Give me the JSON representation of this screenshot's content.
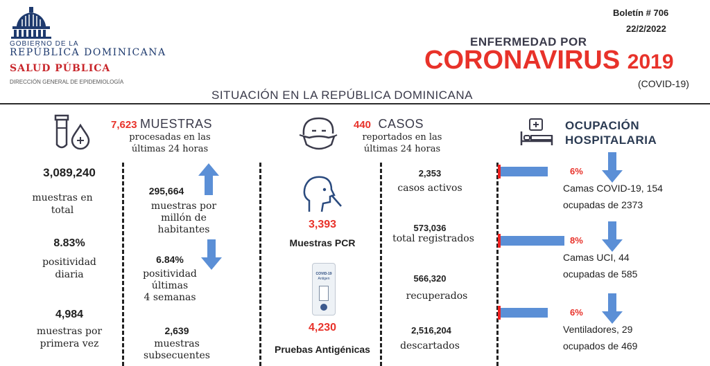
{
  "header": {
    "gov_line1": "GOBIERNO DE LA",
    "gov_line2": "REPÚBLICA DOMINICANA",
    "ministry": "SALUD PÚBLICA",
    "direction": "DIRECCIÓN GENERAL DE EPIDEMIOLOGÍA",
    "bulletin": "Boletín # 706",
    "date": "22/2/2022",
    "title_small": "ENFERMEDAD POR",
    "title_big": "CORONAVIRUS",
    "title_year": "2019",
    "title_paren": "(COVID-19)",
    "subtitle": "SITUACIÓN EN LA REPÚBLICA DOMINICANA"
  },
  "muestras": {
    "count_24h": "7,623",
    "heading": "MUESTRAS",
    "desc_line1": "procesadas en las",
    "desc_line2": "últimas 24 horas",
    "total_value": "3,089,240",
    "total_label_1": "muestras en",
    "total_label_2": "total",
    "per_million_value": "295,664",
    "per_million_label_1": "muestras por",
    "per_million_label_2": "millón de",
    "per_million_label_3": "habitantes",
    "daily_pos_value": "8.83%",
    "daily_pos_label_1": "positividad",
    "daily_pos_label_2": "diaria",
    "pos4w_value": "6.84%",
    "pos4w_label_1": "positividad",
    "pos4w_label_2": "últimas",
    "pos4w_label_3": "4 semanas",
    "first_value": "4,984",
    "first_label_1": "muestras por",
    "first_label_2": "primera vez",
    "subseq_value": "2,639",
    "subseq_label_1": "muestras",
    "subseq_label_2": "subsecuentes"
  },
  "pruebas": {
    "pcr_value": "3,393",
    "pcr_label": "Muestras PCR",
    "antigen_value": "4,230",
    "antigen_label": "Pruebas Antigénicas",
    "kit_text_1": "COVID-19",
    "kit_text_2": "Antigen"
  },
  "casos": {
    "count_24h": "440",
    "heading": "CASOS",
    "desc_line1": "reportados en las",
    "desc_line2": "últimas 24 horas",
    "active_value": "2,353",
    "active_label": "casos activos",
    "total_value": "573,036",
    "total_label": "total registrados",
    "recovered_value": "566,320",
    "recovered_label": "recuperados",
    "discarded_value": "2,516,204",
    "discarded_label": "descartados"
  },
  "ocupacion": {
    "heading_1": "OCUPACIÓN",
    "heading_2": "HOSPITALARIA",
    "items": [
      {
        "percent": "6%",
        "fraction": 0.06,
        "line1": "Camas COVID-19,  154",
        "line2": "ocupadas de 2373"
      },
      {
        "percent": "8%",
        "fraction": 0.08,
        "line1": "Camas UCI,  44",
        "line2": "ocupadas de 585"
      },
      {
        "percent": "6%",
        "fraction": 0.06,
        "line1": "Ventiladores, 29",
        "line2": "ocupados de 469"
      }
    ]
  },
  "colors": {
    "red": "#e8322a",
    "blue": "#5b8fd6",
    "navy": "#1e3a6e"
  }
}
